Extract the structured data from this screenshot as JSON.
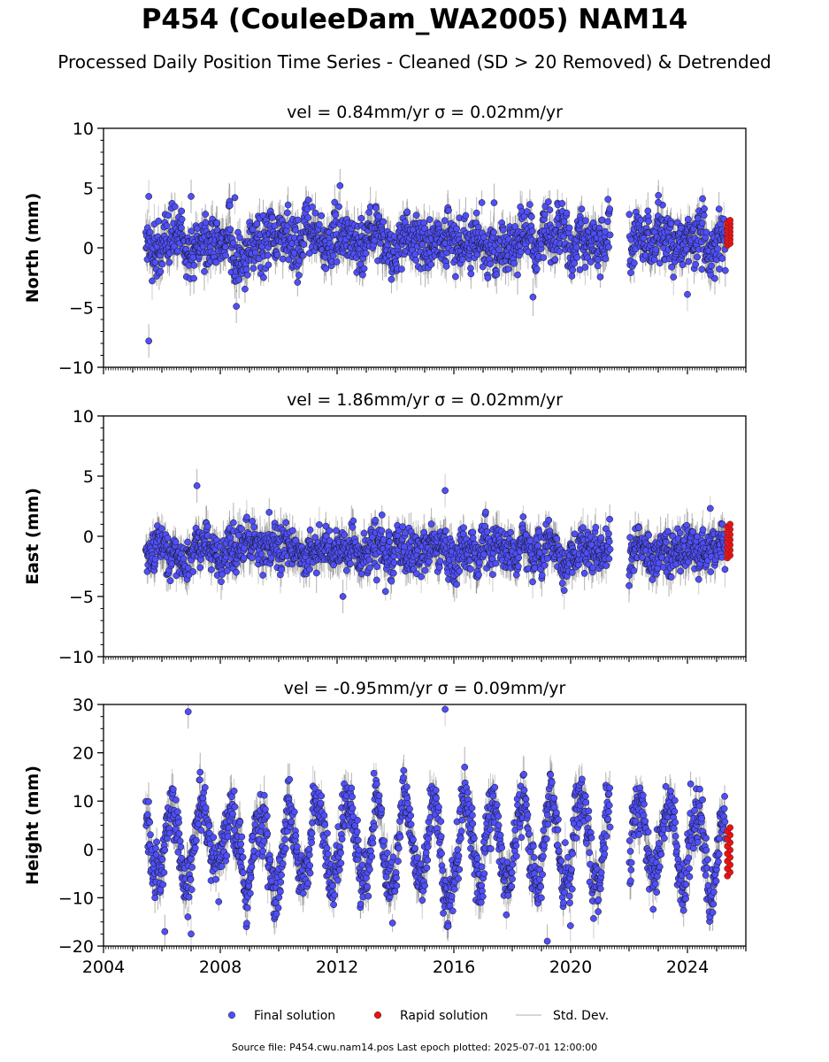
{
  "title": "P454 (CouleeDam_WA2005) NAM14",
  "subtitle": "Processed Daily Position Time Series - Cleaned (SD > 20 Removed) & Detrended",
  "footer": "Source file: P454.cwu.nam14.pos  Last epoch plotted: 2025-07-01 12:00:00",
  "colors": {
    "final": "#4f4ff7",
    "rapid": "#ee1111",
    "std": "#c8c8c8",
    "dark_err": "#555555"
  },
  "chart_data": [
    {
      "type": "scatter",
      "panel": "north",
      "title": "vel = 0.84mm/yr   σ = 0.02mm/yr",
      "ylabel": "North (mm)",
      "xlabel": "",
      "xlim": [
        2004,
        2026
      ],
      "ylim": [
        -10,
        10
      ],
      "yticks": [
        -10,
        -5,
        0,
        5,
        10
      ],
      "ytick_labels": [
        "−10",
        "−5",
        "0",
        "5",
        "10"
      ],
      "x_tick_labels_shown": false,
      "grid": false,
      "data_span": [
        2005.45,
        2025.5
      ],
      "gap": [
        2021.35,
        2022.0
      ],
      "rapid_x": [
        2025.3,
        2025.5
      ],
      "center": 0.5,
      "noise_sd": 1.3,
      "seasonal_amplitude": 0.3,
      "rapid_range": [
        0.2,
        2.3
      ],
      "outliers": [
        [
          2005.55,
          -7.8
        ],
        [
          2005.55,
          4.3
        ],
        [
          2007.0,
          4.3
        ],
        [
          2008.55,
          -4.9
        ],
        [
          2008.5,
          4.2
        ],
        [
          2012.1,
          5.2
        ],
        [
          2023.0,
          3.8
        ],
        [
          2024.0,
          -3.9
        ]
      ]
    },
    {
      "type": "scatter",
      "panel": "east",
      "title": "vel = 1.86mm/yr   σ = 0.02mm/yr",
      "ylabel": "East (mm)",
      "xlabel": "",
      "xlim": [
        2004,
        2026
      ],
      "ylim": [
        -10,
        10
      ],
      "yticks": [
        -10,
        -5,
        0,
        5,
        10
      ],
      "ytick_labels": [
        "−10",
        "−5",
        "0",
        "5",
        "10"
      ],
      "x_tick_labels_shown": false,
      "grid": false,
      "data_span": [
        2005.45,
        2025.5
      ],
      "gap": [
        2021.35,
        2022.0
      ],
      "rapid_x": [
        2025.3,
        2025.5
      ],
      "center": -1.2,
      "noise_sd": 1.0,
      "seasonal_amplitude": 0.3,
      "rapid_range": [
        -1.8,
        1.0
      ],
      "outliers": [
        [
          2007.2,
          4.2
        ],
        [
          2015.7,
          3.8
        ],
        [
          2012.2,
          -5.0
        ],
        [
          2022.0,
          -4.1
        ]
      ]
    },
    {
      "type": "scatter",
      "panel": "height",
      "title": "vel = -0.95mm/yr   σ = 0.09mm/yr",
      "ylabel": "Height (mm)",
      "xlabel": "",
      "xlim": [
        2004,
        2026
      ],
      "ylim": [
        -20,
        30
      ],
      "yticks": [
        -20,
        -10,
        0,
        10,
        20,
        30
      ],
      "ytick_labels": [
        "−20",
        "−10",
        "0",
        "10",
        "20",
        "30"
      ],
      "xticks": [
        2004,
        2008,
        2012,
        2016,
        2020,
        2024
      ],
      "xtick_labels": [
        "2004",
        "2008",
        "2012",
        "2016",
        "2020",
        "2024"
      ],
      "x_tick_labels_shown": true,
      "grid": false,
      "data_span": [
        2005.45,
        2025.5
      ],
      "gap": [
        2021.35,
        2022.0
      ],
      "rapid_x": [
        2025.3,
        2025.5
      ],
      "center": 1.0,
      "noise_sd": 3.5,
      "seasonal_amplitude": 8.5,
      "rapid_range": [
        -5.5,
        4.5
      ],
      "outliers": [
        [
          2006.9,
          28.5
        ],
        [
          2015.7,
          29.0
        ],
        [
          2019.2,
          -19.0
        ],
        [
          2006.1,
          -17.0
        ],
        [
          2007.0,
          -17.5
        ]
      ]
    }
  ],
  "legend": {
    "placement": "bottom-center",
    "items": [
      {
        "label": "Final solution",
        "kind": "final"
      },
      {
        "label": "Rapid solution",
        "kind": "rapid"
      },
      {
        "label": "Std. Dev.",
        "kind": "std"
      }
    ]
  }
}
